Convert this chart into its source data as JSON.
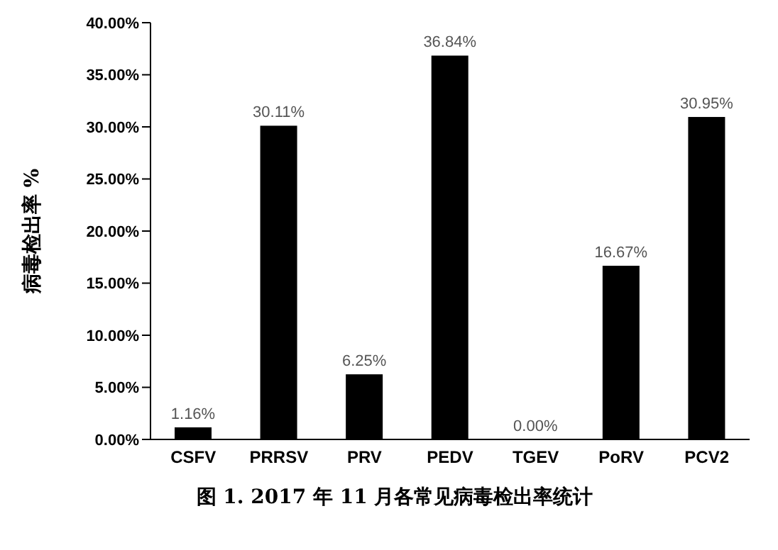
{
  "chart_data": {
    "type": "bar",
    "title": "图 1. 2017 年 11 月各常见病毒检出率统计",
    "ylabel": "病毒检出率 %",
    "categories": [
      "CSFV",
      "PRRSV",
      "PRV",
      "PEDV",
      "TGEV",
      "PoRV",
      "PCV2"
    ],
    "values": [
      1.16,
      30.11,
      6.25,
      36.84,
      0.0,
      16.67,
      30.95
    ],
    "value_labels": [
      "1.16%",
      "30.11%",
      "6.25%",
      "36.84%",
      "0.00%",
      "16.67%",
      "30.95%"
    ],
    "color": "#000000",
    "ylim": [
      0,
      40
    ],
    "yticks": [
      {
        "value": 0,
        "label": "0.00%"
      },
      {
        "value": 5,
        "label": "5.00%"
      },
      {
        "value": 10,
        "label": "10.00%"
      },
      {
        "value": 15,
        "label": "15.00%"
      },
      {
        "value": 20,
        "label": "20.00%"
      },
      {
        "value": 25,
        "label": "25.00%"
      },
      {
        "value": 30,
        "label": "30.00%"
      },
      {
        "value": 35,
        "label": "35.00%"
      },
      {
        "value": 40,
        "label": "40.00%"
      }
    ],
    "grid": false,
    "legend": false
  }
}
